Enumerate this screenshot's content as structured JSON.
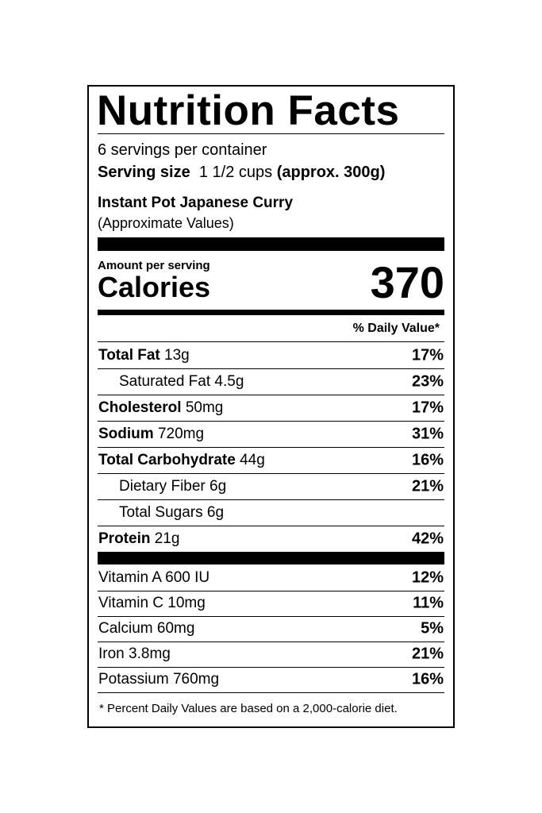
{
  "header": {
    "title": "Nutrition Facts",
    "servings": "6 servings per container",
    "serving_size_label": "Serving size",
    "serving_size_amount": "1 1/2 cups",
    "serving_size_weight": "(approx. 300g)",
    "product": "Instant Pot Japanese Curry",
    "note": "(Approximate Values)"
  },
  "calories": {
    "amount_label": "Amount per serving",
    "label": "Calories",
    "value": 370
  },
  "daily_value_header": "% Daily Value*",
  "nutrients": [
    {
      "name": "Total Fat",
      "amount": "13g",
      "dv": "17%",
      "bold": true,
      "indent": false
    },
    {
      "name": "Saturated Fat",
      "amount": "4.5g",
      "dv": "23%",
      "bold": false,
      "indent": true
    },
    {
      "name": "Cholesterol",
      "amount": "50mg",
      "dv": "17%",
      "bold": true,
      "indent": false
    },
    {
      "name": "Sodium",
      "amount": "720mg",
      "dv": "31%",
      "bold": true,
      "indent": false
    },
    {
      "name": "Total Carbohydrate",
      "amount": "44g",
      "dv": "16%",
      "bold": true,
      "indent": false
    },
    {
      "name": "Dietary Fiber",
      "amount": "6g",
      "dv": "21%",
      "bold": false,
      "indent": true
    },
    {
      "name": "Total Sugars",
      "amount": "6g",
      "bold": false,
      "indent": true
    },
    {
      "name": "Protein",
      "amount": "21g",
      "dv": "42%",
      "bold": true,
      "indent": false
    }
  ],
  "vitamins": [
    {
      "name": "Vitamin A",
      "amount": "600 IU",
      "dv": "12%"
    },
    {
      "name": "Vitamin C",
      "amount": "10mg",
      "dv": "11%"
    },
    {
      "name": "Calcium",
      "amount": "60mg",
      "dv": "5%"
    },
    {
      "name": "Iron",
      "amount": "3.8mg",
      "dv": "21%"
    },
    {
      "name": "Potassium",
      "amount": "760mg",
      "dv": "16%"
    }
  ],
  "footnote": "* Percent Daily Values are based on a 2,000-calorie diet."
}
